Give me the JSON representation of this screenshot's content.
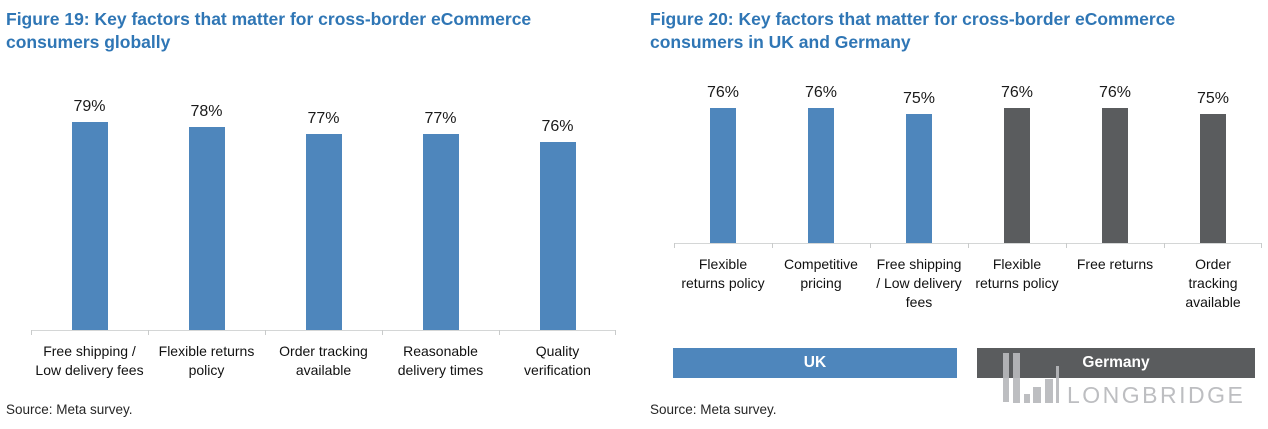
{
  "colors": {
    "title_blue": "#2F76B5",
    "bar_blue": "#4E86BC",
    "bar_gray": "#5A5C5E",
    "axis_line": "#D4D6D6",
    "label_text": "#111111",
    "legend_text": "#FFFFFF",
    "watermark_gray": "#C1C3C5"
  },
  "chart_data": [
    {
      "id": "figure19",
      "type": "bar",
      "title": "Figure 19: Key factors that matter for cross-border eCommerce consumers globally",
      "categories": [
        "Free shipping / Low delivery fees",
        "Flexible returns policy",
        "Order tracking available",
        "Reasonable delivery times",
        "Quality verification"
      ],
      "category_lines": [
        [
          "Free shipping /",
          "Low delivery fees"
        ],
        [
          "Flexible returns",
          "policy"
        ],
        [
          "Order tracking",
          "available"
        ],
        [
          "Reasonable",
          "delivery times"
        ],
        [
          "Quality",
          "verification"
        ]
      ],
      "values": [
        79,
        78,
        77,
        77,
        76
      ],
      "value_labels": [
        "79%",
        "78%",
        "77%",
        "77%",
        "76%"
      ],
      "unit": "%",
      "bar_colors": [
        "#4E86BC",
        "#4E86BC",
        "#4E86BC",
        "#4E86BC",
        "#4E86BC"
      ],
      "ylim": [
        50,
        82
      ],
      "grid": false,
      "xlabel": "",
      "ylabel": "",
      "legend": null,
      "source": "Source: Meta survey."
    },
    {
      "id": "figure20",
      "type": "bar",
      "title": "Figure 20: Key factors that matter for cross-border eCommerce consumers in UK and Germany",
      "categories": [
        "Flexible returns policy",
        "Competitive pricing",
        "Free shipping / Low delivery fees",
        "Flexible returns policy",
        "Free returns",
        "Order tracking available"
      ],
      "category_lines": [
        [
          "Flexible",
          "returns policy"
        ],
        [
          "Competitive",
          "pricing"
        ],
        [
          "Free shipping",
          "/ Low delivery",
          "fees"
        ],
        [
          "Flexible",
          "returns policy"
        ],
        [
          "Free returns"
        ],
        [
          "Order",
          "tracking",
          "available"
        ]
      ],
      "values": [
        76,
        76,
        75,
        76,
        76,
        75
      ],
      "value_labels": [
        "76%",
        "76%",
        "75%",
        "76%",
        "76%",
        "75%"
      ],
      "unit": "%",
      "bar_series": [
        "UK",
        "UK",
        "UK",
        "Germany",
        "Germany",
        "Germany"
      ],
      "bar_colors": [
        "#4E86BC",
        "#4E86BC",
        "#4E86BC",
        "#5A5C5E",
        "#5A5C5E",
        "#5A5C5E"
      ],
      "ylim": [
        53.5,
        80
      ],
      "grid": false,
      "xlabel": "",
      "ylabel": "",
      "legend": [
        {
          "label": "UK",
          "color": "#4E86BC"
        },
        {
          "label": "Germany",
          "color": "#5A5C5E"
        }
      ],
      "source": "Source: Meta survey."
    }
  ],
  "watermark": {
    "text": "LONGBRIDGE"
  }
}
